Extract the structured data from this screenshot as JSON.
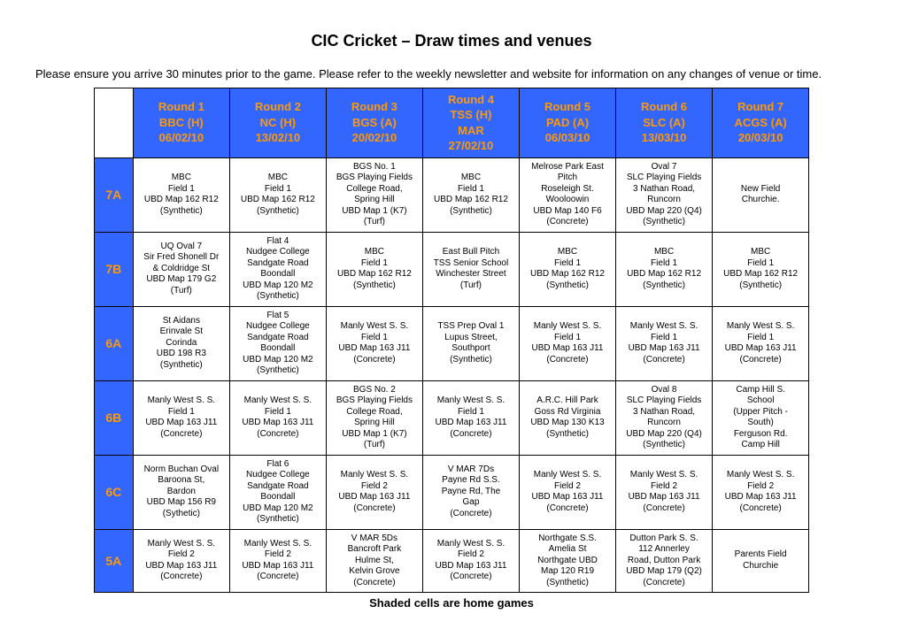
{
  "title": "CIC Cricket – Draw times and venues",
  "intro": "Please ensure you arrive 30 minutes prior to the game. Please refer to the weekly newsletter and website for information on any changes of venue or time.",
  "footnote": "Shaded cells are home games",
  "header_bg": "#3366ff",
  "header_fg": "#ff9900",
  "rounds": [
    {
      "l1": "Round 1",
      "l2": "BBC (H)",
      "l3": "06/02/10"
    },
    {
      "l1": "Round 2",
      "l2": "NC (H)",
      "l3": "13/02/10"
    },
    {
      "l1": "Round 3",
      "l2": "BGS (A)",
      "l3": "20/02/10"
    },
    {
      "l1": "Round 4",
      "l2": "TSS (H)",
      "l3": "MAR",
      "l4": "27/02/10"
    },
    {
      "l1": "Round 5",
      "l2": "PAD (A)",
      "l3": "06/03/10"
    },
    {
      "l1": "Round 6",
      "l2": "SLC (A)",
      "l3": "13/03/10"
    },
    {
      "l1": "Round 7",
      "l2": "ACGS (A)",
      "l3": "20/03/10"
    }
  ],
  "grades": [
    "7A",
    "7B",
    "6A",
    "6B",
    "6C",
    "5A"
  ],
  "cells": {
    "7A": [
      "MBC\nField 1\nUBD Map 162 R12\n(Synthetic)",
      "MBC\nField 1\nUBD Map 162 R12\n(Synthetic)",
      "BGS No. 1\nBGS Playing Fields\nCollege Road,\nSpring Hill\nUBD Map 1 (K7)\n(Turf)",
      "MBC\nField 1\nUBD Map 162 R12\n(Synthetic)",
      "Melrose Park East\nPitch\nRoseleigh St.\nWooloowin\nUBD Map 140 F6\n(Concrete)",
      "Oval 7\nSLC Playing Fields\n3 Nathan Road,\nRuncorn\nUBD Map 220 (Q4)\n(Synthetic)",
      "New Field\nChurchie."
    ],
    "7B": [
      "UQ Oval 7\nSir Fred Shonell Dr\n& Coldridge St\nUBD Map 179 G2\n(Turf)",
      "Flat 4\nNudgee College\nSandgate Road\nBoondall\nUBD Map 120 M2\n(Synthetic)",
      "MBC\nField 1\nUBD Map 162 R12\n(Synthetic)",
      "East Bull Pitch\nTSS Senior School\nWinchester Street\n(Turf)",
      "MBC\nField 1\nUBD Map 162 R12\n(Synthetic)",
      "MBC\nField 1\nUBD Map 162 R12\n(Synthetic)",
      "MBC\nField 1\nUBD Map 162 R12\n(Synthetic)"
    ],
    "6A": [
      "St Aidans\nErinvale St\nCorinda\nUBD 198 R3\n(Synthetic)",
      "Flat 5\nNudgee College\nSandgate Road\nBoondall\nUBD Map 120 M2\n(Synthetic)",
      "Manly West S. S.\nField 1\nUBD Map 163 J11\n(Concrete)",
      "TSS Prep Oval 1\nLupus Street,\nSouthport\n(Synthetic)",
      "Manly West S. S.\nField 1\nUBD Map 163 J11\n(Concrete)",
      "Manly West S. S.\nField 1\nUBD Map 163 J11\n(Concrete)",
      "Manly West S. S.\nField 1\nUBD Map 163 J11\n(Concrete)"
    ],
    "6B": [
      "Manly West S. S.\nField 1\nUBD Map 163 J11\n(Concrete)",
      "Manly West S. S.\nField 1\nUBD Map 163 J11\n(Concrete)",
      "BGS No. 2\nBGS Playing Fields\nCollege Road,\nSpring Hill\nUBD Map 1 (K7)\n(Turf)",
      "Manly West S. S.\nField 1\nUBD Map 163 J11\n(Concrete)",
      "A.R.C. Hill Park\nGoss Rd Virginia\nUBD Map 130 K13\n(Synthetic)",
      "Oval 8\nSLC Playing Fields\n3 Nathan Road,\nRuncorn\nUBD Map 220 (Q4)\n(Synthetic)",
      "Camp Hill S.\nSchool\n(Upper Pitch -\nSouth)\nFerguson Rd.\nCamp Hill"
    ],
    "6C": [
      "Norm Buchan Oval\nBaroona St,\nBardon\nUBD Map 156 R9\n(Sythetic)",
      "Flat 6\nNudgee College\nSandgate Road\nBoondall\nUBD Map 120 M2\n(Synthetic)",
      "Manly West S. S.\nField 2\nUBD Map 163 J11\n(Concrete)",
      "V MAR 7Ds\nPayne Rd S.S.\nPayne Rd, The\nGap\n(Concrete)",
      "Manly West S. S.\nField 2\nUBD Map 163 J11\n(Concrete)",
      "Manly West S. S.\nField 2\nUBD Map 163 J11\n(Concrete)",
      "Manly West S. S.\nField 2\nUBD Map 163 J11\n(Concrete)"
    ],
    "5A": [
      "Manly West S. S.\nField 2\nUBD Map 163 J11\n(Concrete)",
      "Manly West S. S.\nField 2\nUBD Map 163 J11\n(Concrete)",
      "V MAR 5Ds\nBancroft Park\nHulme St,\nKelvin Grove\n(Concrete)",
      "Manly West S. S.\nField 2\nUBD Map 163 J11\n(Concrete)",
      "Northgate S.S.\nAmelia St\nNorthgate UBD\nMap 120 R19\n(Synthetic)",
      "Dutton Park S. S.\n112 Annerley\nRoad, Dutton Park\nUBD Map 179 (Q2)\n(Concrete)",
      "Parents Field\nChurchie"
    ]
  }
}
